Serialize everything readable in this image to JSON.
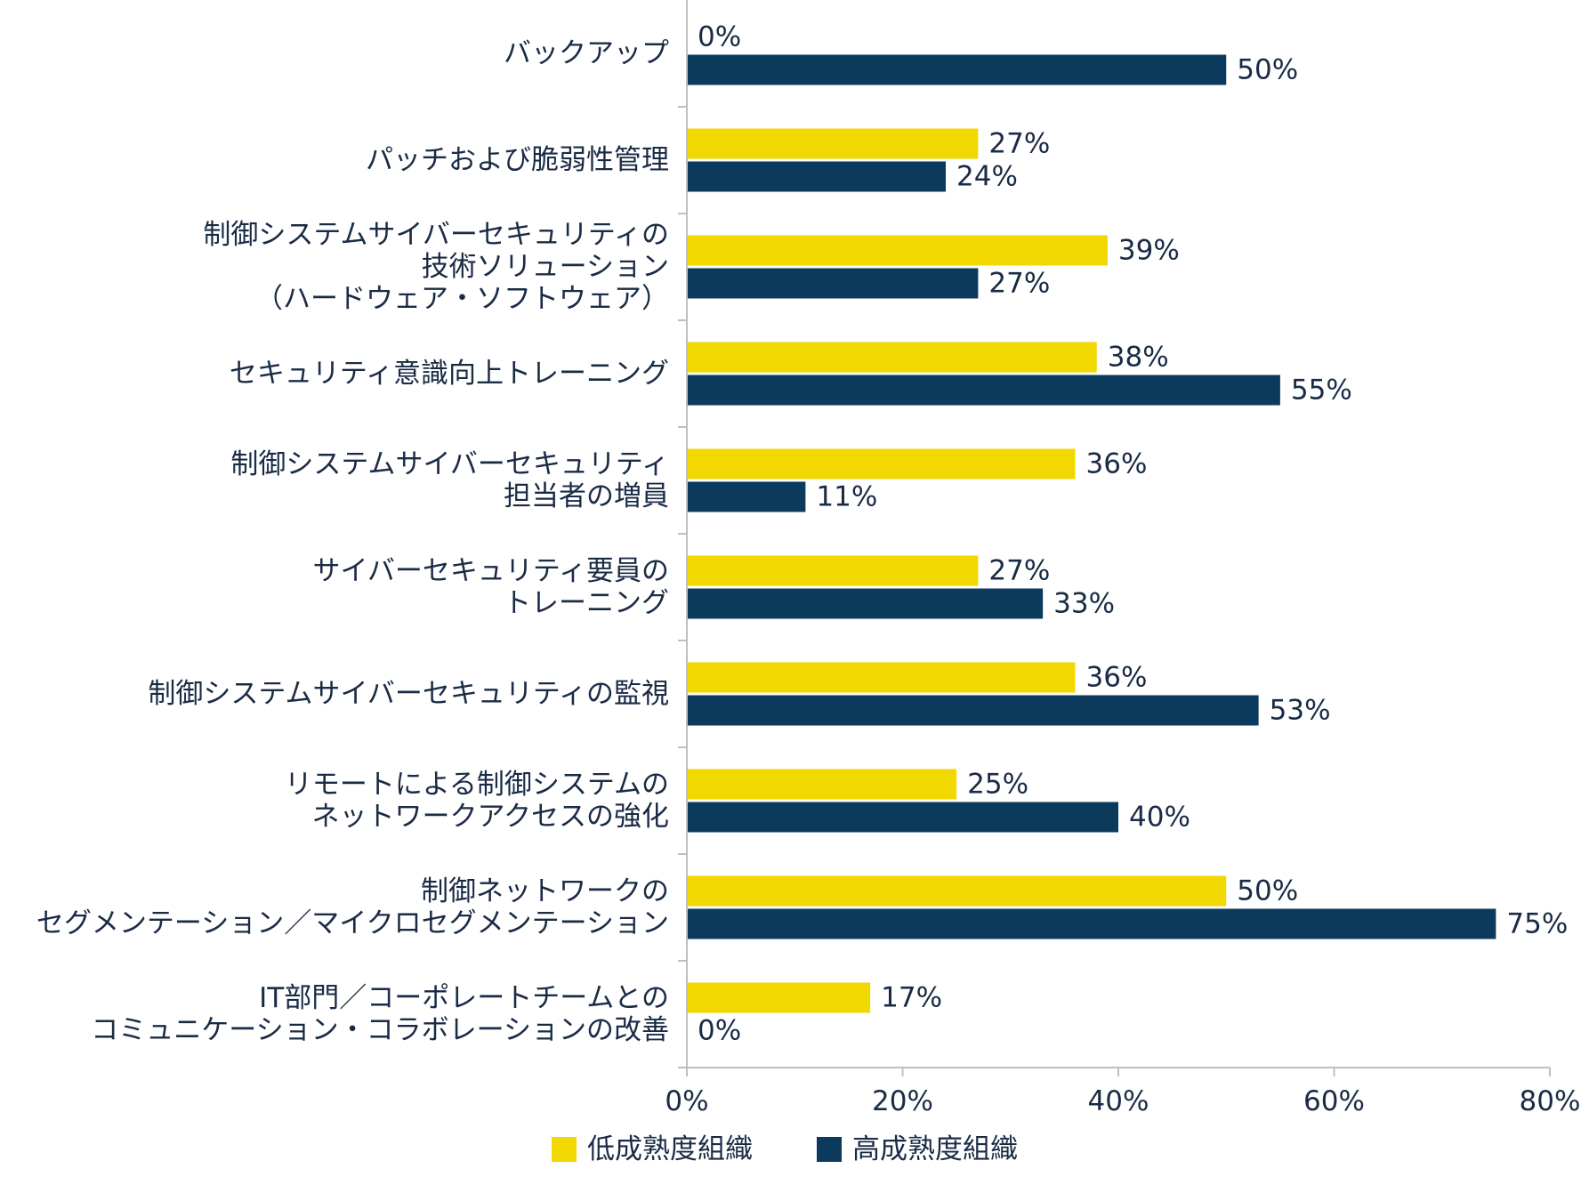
{
  "chart_data": {
    "type": "bar",
    "orientation": "horizontal",
    "categories": [
      [
        "バックアップ"
      ],
      [
        "パッチおよび脆弱性管理"
      ],
      [
        "制御システムサイバーセキュリティの",
        "技術ソリューション",
        "（ハードウェア・ソフトウェア）"
      ],
      [
        "セキュリティ意識向上トレーニング"
      ],
      [
        "制御システムサイバーセキュリティ",
        "担当者の増員"
      ],
      [
        "サイバーセキュリティ要員の",
        "トレーニング"
      ],
      [
        "制御システムサイバーセキュリティの監視"
      ],
      [
        "リモートによる制御システムの",
        "ネットワークアクセスの強化"
      ],
      [
        "制御ネットワークの",
        "セグメンテーション／マイクロセグメンテーション"
      ],
      [
        "IT部門／コーポレートチームとの",
        "コミュニケーション・コラボレーションの改善"
      ]
    ],
    "series": [
      {
        "name": "低成熟度組織",
        "color": "#f0d800",
        "values": [
          0,
          27,
          39,
          38,
          36,
          27,
          36,
          25,
          50,
          17
        ]
      },
      {
        "name": "高成熟度組織",
        "color": "#0b3a5c",
        "values": [
          50,
          24,
          27,
          55,
          11,
          33,
          53,
          40,
          75,
          0
        ]
      }
    ],
    "value_suffix": "%",
    "xlim": [
      0,
      80
    ],
    "xticks": [
      "0%",
      "20%",
      "40%",
      "60%",
      "80%"
    ],
    "grid": false,
    "legend_position": "bottom"
  }
}
